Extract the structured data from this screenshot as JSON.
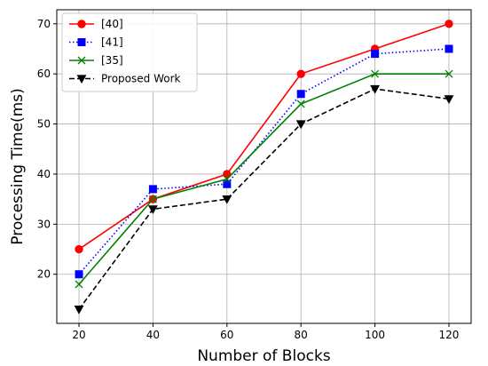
{
  "chart_data": {
    "type": "line",
    "title": "",
    "xlabel": "Number of Blocks",
    "ylabel": "Processing Time(ms)",
    "x": [
      20,
      40,
      60,
      80,
      100,
      120
    ],
    "x_ticks": [
      "20",
      "40",
      "60",
      "80",
      "100",
      "120"
    ],
    "y_ticks": [
      "20",
      "30",
      "40",
      "50",
      "60",
      "70"
    ],
    "xlim": [
      14,
      126
    ],
    "ylim": [
      10.2,
      72.8
    ],
    "grid": true,
    "legend_position": "top-left",
    "series": [
      {
        "name": "[40]",
        "values": [
          25,
          35,
          40,
          60,
          65,
          70
        ],
        "color": "#ff0000",
        "marker": "circle",
        "line_style": "solid"
      },
      {
        "name": "[41]",
        "values": [
          20,
          37,
          38,
          56,
          64,
          65
        ],
        "color": "#0000ff",
        "marker": "square",
        "line_style": "dotted"
      },
      {
        "name": "[35]",
        "values": [
          18,
          35,
          39,
          54,
          60,
          60
        ],
        "color": "#008000",
        "marker": "x",
        "line_style": "solid"
      },
      {
        "name": "Proposed Work",
        "values": [
          13,
          33,
          35,
          50,
          57,
          55
        ],
        "color": "#000000",
        "marker": "triangle-down",
        "line_style": "dashed"
      }
    ]
  }
}
